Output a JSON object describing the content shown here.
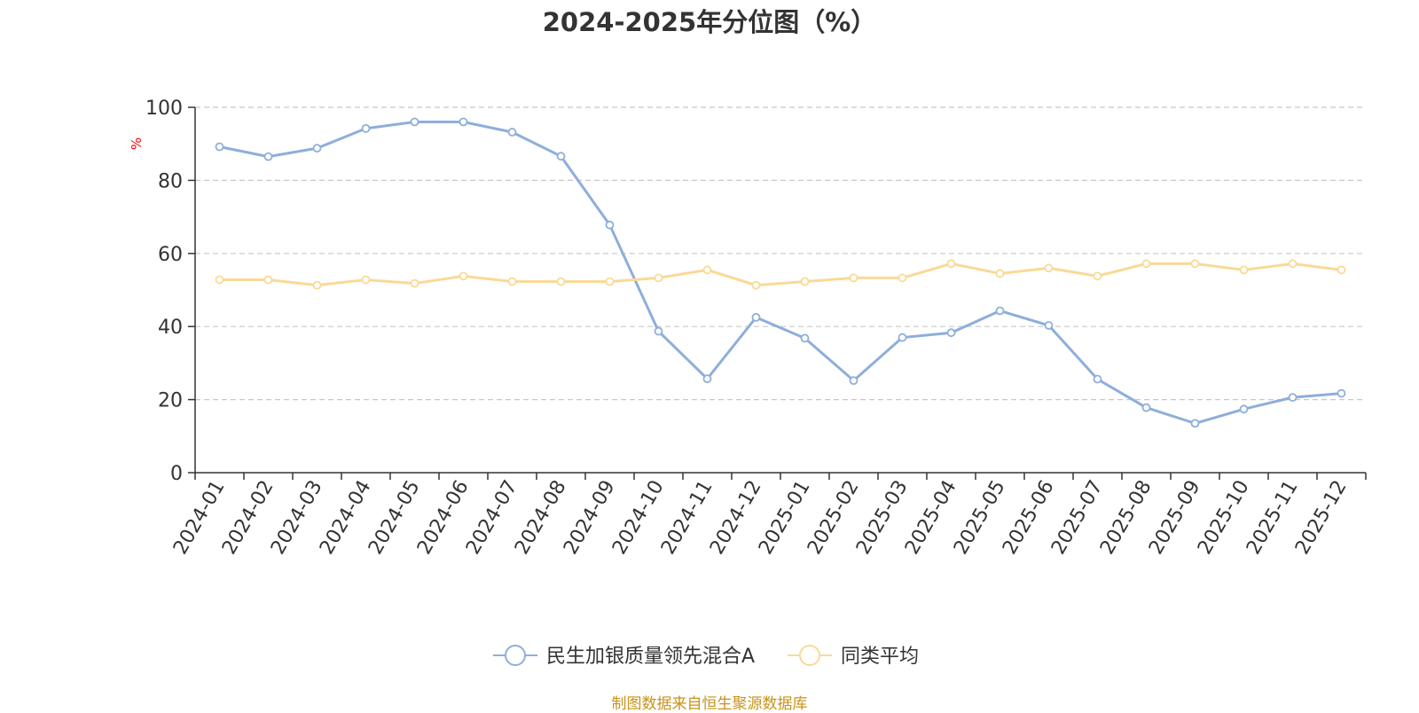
{
  "chart_data": {
    "type": "line",
    "title": "2024-2025年分位图（%）",
    "ylabel": "%",
    "xlabel": "",
    "ylim": [
      0,
      100
    ],
    "yticks": [
      0,
      20,
      40,
      60,
      80,
      100
    ],
    "grid": true,
    "legend_position": "bottom-center",
    "categories": [
      "2024-01",
      "2024-02",
      "2024-03",
      "2024-04",
      "2024-05",
      "2024-06",
      "2024-07",
      "2024-08",
      "2024-09",
      "2024-10",
      "2024-11",
      "2024-12",
      "2025-01",
      "2025-02",
      "2025-03",
      "2025-04",
      "2025-05",
      "2025-06",
      "2025-07",
      "2025-08",
      "2025-09",
      "2025-10",
      "2025-11",
      "2025-12"
    ],
    "series": [
      {
        "name": "民生加银质量领先混合A",
        "color": "#8eaedb",
        "values": [
          89.2,
          86.5,
          88.8,
          94.2,
          96.0,
          96.0,
          93.2,
          86.6,
          67.8,
          38.7,
          25.7,
          42.5,
          36.8,
          25.2,
          37.0,
          38.3,
          44.3,
          40.3,
          25.6,
          17.8,
          13.5,
          17.4,
          20.6,
          21.7
        ]
      },
      {
        "name": "同类平均",
        "color": "#fad996",
        "values": [
          52.8,
          52.8,
          51.3,
          52.8,
          51.8,
          53.8,
          52.3,
          52.3,
          52.3,
          53.3,
          55.5,
          51.3,
          52.3,
          53.3,
          53.3,
          57.2,
          54.5,
          56.0,
          53.8,
          57.2,
          57.2,
          55.5,
          57.2,
          55.5
        ]
      }
    ]
  },
  "source_note": "制图数据来自恒生聚源数据库"
}
